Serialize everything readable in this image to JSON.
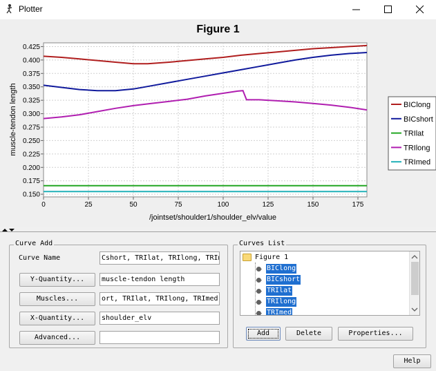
{
  "window": {
    "title": "Plotter"
  },
  "figure": {
    "title": "Figure 1"
  },
  "chart_data": {
    "type": "line",
    "title": "Figure 1",
    "xlabel": "/jointset/shoulder1/shoulder_elv/value",
    "ylabel": "muscle-tendon length",
    "xlim": [
      0,
      180
    ],
    "ylim": [
      0.145,
      0.432
    ],
    "xticks": [
      "0",
      "25",
      "50",
      "75",
      "100",
      "125",
      "150",
      "175"
    ],
    "xtick_values": [
      0,
      25,
      50,
      75,
      100,
      125,
      150,
      175
    ],
    "yticks": [
      "0.150",
      "0.175",
      "0.200",
      "0.225",
      "0.250",
      "0.275",
      "0.300",
      "0.325",
      "0.350",
      "0.375",
      "0.400",
      "0.425"
    ],
    "ytick_values": [
      0.15,
      0.175,
      0.2,
      0.225,
      0.25,
      0.275,
      0.3,
      0.325,
      0.35,
      0.375,
      0.4,
      0.425
    ],
    "grid": true,
    "legend_position": "right",
    "series": [
      {
        "name": "BIClong",
        "color": "#b01e1e",
        "points": [
          [
            0,
            0.407
          ],
          [
            10,
            0.405
          ],
          [
            20,
            0.402
          ],
          [
            30,
            0.399
          ],
          [
            40,
            0.396
          ],
          [
            50,
            0.393
          ],
          [
            58,
            0.393
          ],
          [
            70,
            0.396
          ],
          [
            80,
            0.399
          ],
          [
            90,
            0.402
          ],
          [
            100,
            0.405
          ],
          [
            110,
            0.409
          ],
          [
            120,
            0.412
          ],
          [
            130,
            0.415
          ],
          [
            140,
            0.418
          ],
          [
            150,
            0.421
          ],
          [
            160,
            0.423
          ],
          [
            170,
            0.425
          ],
          [
            180,
            0.427
          ]
        ]
      },
      {
        "name": "BICshort",
        "color": "#101a9c",
        "points": [
          [
            0,
            0.353
          ],
          [
            10,
            0.349
          ],
          [
            20,
            0.345
          ],
          [
            30,
            0.343
          ],
          [
            40,
            0.343
          ],
          [
            50,
            0.346
          ],
          [
            60,
            0.352
          ],
          [
            70,
            0.358
          ],
          [
            80,
            0.364
          ],
          [
            90,
            0.37
          ],
          [
            100,
            0.376
          ],
          [
            110,
            0.382
          ],
          [
            120,
            0.388
          ],
          [
            130,
            0.394
          ],
          [
            140,
            0.4
          ],
          [
            150,
            0.405
          ],
          [
            160,
            0.409
          ],
          [
            170,
            0.412
          ],
          [
            180,
            0.414
          ]
        ]
      },
      {
        "name": "TRIlat",
        "color": "#22a622",
        "points": [
          [
            0,
            0.166
          ],
          [
            180,
            0.166
          ]
        ]
      },
      {
        "name": "TRIlong",
        "color": "#b01eb0",
        "points": [
          [
            0,
            0.291
          ],
          [
            10,
            0.294
          ],
          [
            20,
            0.298
          ],
          [
            30,
            0.304
          ],
          [
            40,
            0.31
          ],
          [
            50,
            0.315
          ],
          [
            60,
            0.319
          ],
          [
            70,
            0.323
          ],
          [
            80,
            0.327
          ],
          [
            90,
            0.333
          ],
          [
            100,
            0.338
          ],
          [
            108,
            0.342
          ],
          [
            111,
            0.343
          ],
          [
            113,
            0.326
          ],
          [
            120,
            0.326
          ],
          [
            130,
            0.324
          ],
          [
            140,
            0.322
          ],
          [
            150,
            0.319
          ],
          [
            160,
            0.316
          ],
          [
            170,
            0.312
          ],
          [
            180,
            0.307
          ]
        ]
      },
      {
        "name": "TRImed",
        "color": "#20b0b8",
        "points": [
          [
            0,
            0.155
          ],
          [
            180,
            0.155
          ]
        ]
      }
    ]
  },
  "curve_add": {
    "group_title": "Curve Add",
    "curve_name_label": "Curve Name",
    "curve_name_value": "Cshort, TRIlat, TRIlong, TRImed",
    "y_quantity_button": "Y-Quantity...",
    "y_quantity_value": "muscle-tendon length",
    "muscles_button": "Muscles...",
    "muscles_value": "ort, TRIlat, TRIlong, TRImed",
    "x_quantity_button": "X-Quantity...",
    "x_quantity_value": "shoulder_elv",
    "advanced_button": "Advanced...",
    "advanced_value": ""
  },
  "curves_list": {
    "group_title": "Curves List",
    "root": "Figure 1",
    "items": [
      "BIClong",
      "BICshort",
      "TRIlat",
      "TRIlong",
      "TRImed"
    ],
    "add_button": "Add",
    "delete_button": "Delete",
    "properties_button": "Properties..."
  },
  "help_button": "Help"
}
